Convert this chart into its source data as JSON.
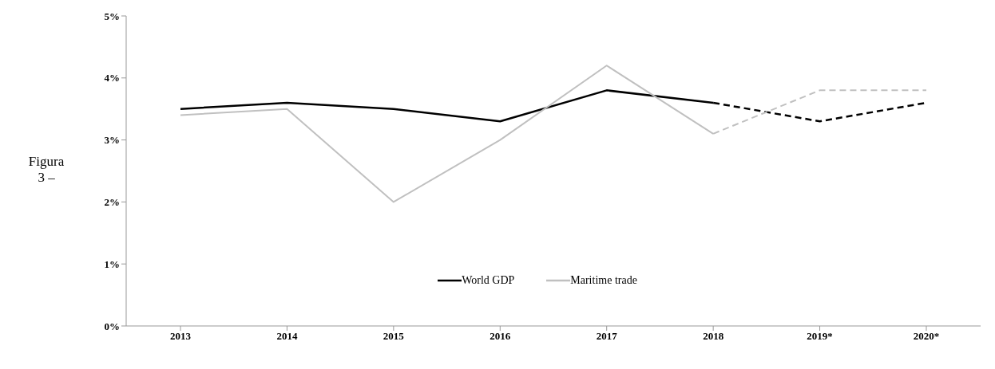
{
  "chart_data": {
    "type": "line",
    "annotations": [
      "Figura 3 –"
    ],
    "categories": [
      "2013",
      "2014",
      "2015",
      "2016",
      "2017",
      "2018",
      "2019*",
      "2020*"
    ],
    "series": [
      {
        "name": "World GDP",
        "color": "#000000",
        "line_style": "solid",
        "values": [
          3.5,
          3.6,
          3.5,
          3.3,
          3.8,
          3.6,
          null,
          null
        ]
      },
      {
        "name": "Maritime trade",
        "color": "#c0c0c0",
        "line_style": "solid",
        "values": [
          3.4,
          3.5,
          2.0,
          3.0,
          4.2,
          3.1,
          null,
          null
        ]
      },
      {
        "color": "#000000",
        "line_style": "dashed",
        "values": [
          null,
          null,
          null,
          null,
          null,
          3.6,
          3.3,
          3.6
        ]
      },
      {
        "color": "#c0c0c0",
        "line_style": "dashed",
        "values": [
          null,
          null,
          null,
          null,
          null,
          3.1,
          3.8,
          3.8
        ]
      }
    ],
    "ylim": [
      0,
      5
    ],
    "yticks": [
      {
        "value": 0,
        "label": "0%"
      },
      {
        "value": 1,
        "label": "1%"
      },
      {
        "value": 2,
        "label": "2%"
      },
      {
        "value": 3,
        "label": "3%"
      },
      {
        "value": 4,
        "label": "4%"
      },
      {
        "value": 5,
        "label": "5%"
      }
    ],
    "grid": false,
    "legend": "bottom",
    "marker": "none"
  }
}
